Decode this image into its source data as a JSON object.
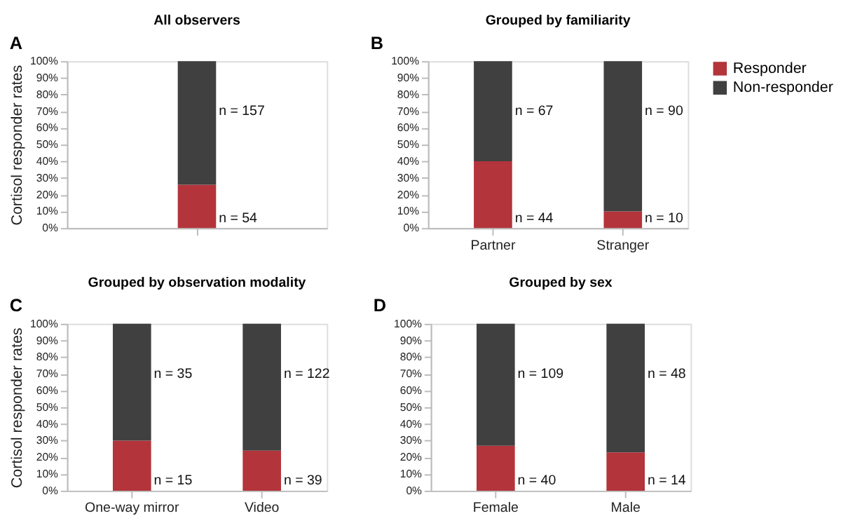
{
  "chart_data": [
    {
      "type": "bar",
      "title": "A",
      "subtitle": "All observers",
      "ylabel": "Cortisol responder rates",
      "categories": [
        null
      ],
      "stacked": true,
      "legend": false,
      "grid": false,
      "series": [
        {
          "color": "#b3343a",
          "values": [
            26
          ]
        },
        {
          "color": "#404040",
          "values": [
            74
          ]
        }
      ],
      "ylim": [
        0,
        100
      ],
      "yticks": [
        {
          "value": 0,
          "label": "0%"
        },
        {
          "value": 10,
          "label": "10%"
        },
        {
          "value": 20,
          "label": "20%"
        },
        {
          "value": 30,
          "label": "30%"
        },
        {
          "value": 40,
          "label": "40%"
        },
        {
          "value": 50,
          "label": "50%"
        },
        {
          "value": 60,
          "label": "60%"
        },
        {
          "value": 70,
          "label": "70%"
        },
        {
          "value": 80,
          "label": "80%"
        },
        {
          "value": 90,
          "label": "90%"
        },
        {
          "value": 100,
          "label": "100%"
        }
      ],
      "annotations": [
        "n = 157",
        "n = 54"
      ]
    },
    {
      "type": "bar",
      "title": "B",
      "subtitle": "Grouped by familiarity",
      "categories": [
        "Partner",
        "Stranger"
      ],
      "stacked": true,
      "legend": "right",
      "grid": false,
      "series": [
        {
          "name": "Responder",
          "color": "#b3343a",
          "values": [
            40,
            10
          ]
        },
        {
          "name": "Non-responder",
          "color": "#404040",
          "values": [
            60,
            90
          ]
        }
      ],
      "ylim": [
        0,
        100
      ],
      "yticks": [
        {
          "value": 0,
          "label": "0%"
        },
        {
          "value": 10,
          "label": "10%"
        },
        {
          "value": 20,
          "label": "20%"
        },
        {
          "value": 30,
          "label": "30%"
        },
        {
          "value": 40,
          "label": "40%"
        },
        {
          "value": 50,
          "label": "50%"
        },
        {
          "value": 60,
          "label": "60%"
        },
        {
          "value": 70,
          "label": "70%"
        },
        {
          "value": 80,
          "label": "80%"
        },
        {
          "value": 90,
          "label": "90%"
        },
        {
          "value": 100,
          "label": "100%"
        }
      ],
      "annotations": [
        "n = 67",
        "n = 44",
        "n = 90",
        "n = 10"
      ]
    },
    {
      "type": "bar",
      "title": "C",
      "subtitle": "Grouped by observation modality",
      "ylabel": "Cortisol responder rates",
      "categories": [
        "One-way mirror",
        "Video"
      ],
      "stacked": true,
      "legend": false,
      "grid": false,
      "series": [
        {
          "color": "#b3343a",
          "values": [
            30,
            24
          ]
        },
        {
          "color": "#404040",
          "values": [
            70,
            76
          ]
        }
      ],
      "ylim": [
        0,
        100
      ],
      "yticks": [
        {
          "value": 0,
          "label": "0%"
        },
        {
          "value": 10,
          "label": "10%"
        },
        {
          "value": 20,
          "label": "20%"
        },
        {
          "value": 30,
          "label": "30%"
        },
        {
          "value": 40,
          "label": "40%"
        },
        {
          "value": 50,
          "label": "50%"
        },
        {
          "value": 60,
          "label": "60%"
        },
        {
          "value": 70,
          "label": "70%"
        },
        {
          "value": 80,
          "label": "80%"
        },
        {
          "value": 90,
          "label": "90%"
        },
        {
          "value": 100,
          "label": "100%"
        }
      ],
      "annotations": [
        "n = 35",
        "n = 15",
        "n = 122",
        "n = 39"
      ]
    },
    {
      "type": "bar",
      "title": "D",
      "subtitle": "Grouped by sex",
      "categories": [
        "Female",
        "Male"
      ],
      "stacked": true,
      "legend": false,
      "grid": false,
      "series": [
        {
          "color": "#b3343a",
          "values": [
            27,
            23
          ]
        },
        {
          "color": "#404040",
          "values": [
            73,
            77
          ]
        }
      ],
      "ylim": [
        0,
        100
      ],
      "yticks": [
        {
          "value": 0,
          "label": "0%"
        },
        {
          "value": 10,
          "label": "10%"
        },
        {
          "value": 20,
          "label": "20%"
        },
        {
          "value": 30,
          "label": "30%"
        },
        {
          "value": 40,
          "label": "40%"
        },
        {
          "value": 50,
          "label": "50%"
        },
        {
          "value": 60,
          "label": "60%"
        },
        {
          "value": 70,
          "label": "70%"
        },
        {
          "value": 80,
          "label": "80%"
        },
        {
          "value": 90,
          "label": "90%"
        },
        {
          "value": 100,
          "label": "100%"
        }
      ],
      "annotations": [
        "n = 109",
        "n = 40",
        "n = 48",
        "n = 14"
      ]
    }
  ]
}
